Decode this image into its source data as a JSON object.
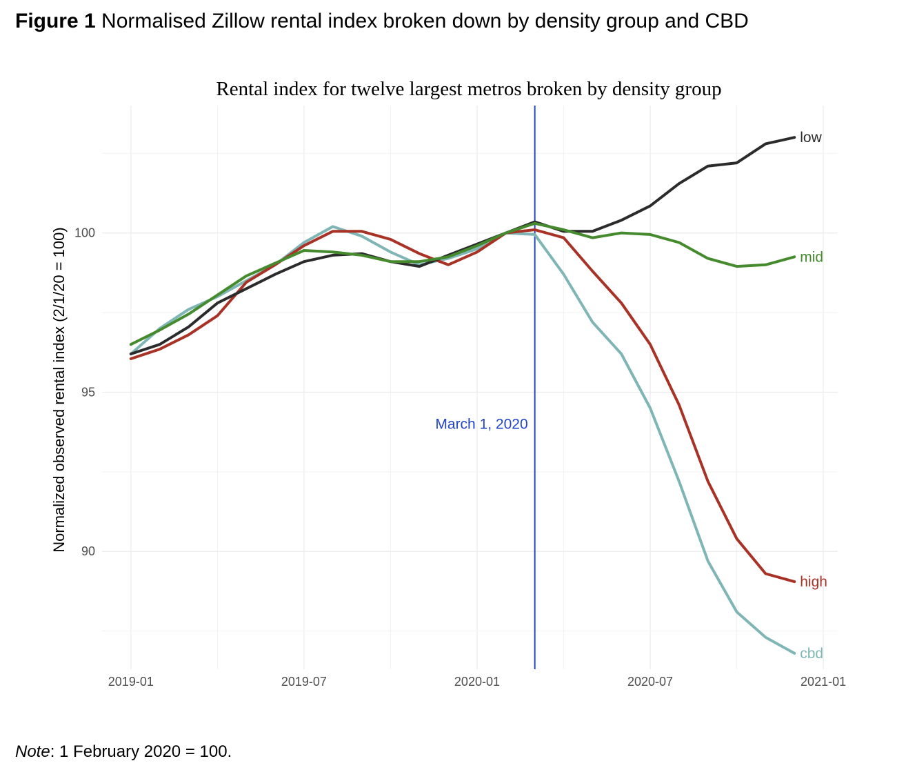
{
  "figure": {
    "title_bold": "Figure 1",
    "title_rest": " Normalised Zillow rental index broken down by density group and CBD",
    "note_label": "Note",
    "note_text": ": 1 February 2020 = 100."
  },
  "chart_data": {
    "type": "line",
    "title": "Rental index for twelve largest metros broken by density group",
    "xlabel": "",
    "ylabel": "Normalized observed rental index (2/1/20 = 100)",
    "x_unit": "months since 2019-01",
    "xlim": [
      -1,
      24.5
    ],
    "ylim": [
      86.3,
      104
    ],
    "x_ticks": [
      {
        "value": 0,
        "label": "2019-01"
      },
      {
        "value": 6,
        "label": "2019-07"
      },
      {
        "value": 12,
        "label": "2020-01"
      },
      {
        "value": 18,
        "label": "2020-07"
      },
      {
        "value": 24,
        "label": "2021-01"
      }
    ],
    "y_ticks": [
      {
        "value": 90,
        "label": "90"
      },
      {
        "value": 95,
        "label": "95"
      },
      {
        "value": 100,
        "label": "100"
      }
    ],
    "grid": true,
    "vline": {
      "x": 14,
      "label": "March 1, 2020",
      "color": "#2244cc"
    },
    "x": [
      0,
      1,
      2,
      3,
      4,
      5,
      6,
      7,
      8,
      9,
      10,
      11,
      12,
      13,
      14,
      15,
      16,
      17,
      18,
      19,
      20,
      21,
      22,
      23
    ],
    "series": [
      {
        "name": "cbd",
        "color": "#7fb5b5",
        "values": [
          96.2,
          97.0,
          97.6,
          98.0,
          98.5,
          99.0,
          99.7,
          100.2,
          99.9,
          99.4,
          99.0,
          99.2,
          99.5,
          100.0,
          99.95,
          98.7,
          97.2,
          96.2,
          94.5,
          92.2,
          89.7,
          88.1,
          87.3,
          86.8
        ]
      },
      {
        "name": "high",
        "color": "#a83226",
        "values": [
          96.05,
          96.35,
          96.8,
          97.4,
          98.45,
          99.0,
          99.6,
          100.05,
          100.05,
          99.8,
          99.35,
          99.0,
          99.4,
          100.0,
          100.1,
          99.85,
          98.8,
          97.8,
          96.5,
          94.6,
          92.2,
          90.4,
          89.3,
          89.05
        ]
      },
      {
        "name": "low",
        "color": "#2b2b2b",
        "values": [
          96.2,
          96.5,
          97.05,
          97.8,
          98.25,
          98.7,
          99.1,
          99.3,
          99.35,
          99.1,
          98.95,
          99.3,
          99.65,
          100.0,
          100.35,
          100.05,
          100.05,
          100.4,
          100.85,
          101.55,
          102.1,
          102.2,
          102.8,
          103.0
        ]
      },
      {
        "name": "mid",
        "color": "#458b2e",
        "values": [
          96.5,
          96.95,
          97.45,
          98.05,
          98.65,
          99.05,
          99.45,
          99.4,
          99.3,
          99.1,
          99.1,
          99.25,
          99.6,
          100.0,
          100.3,
          100.1,
          99.85,
          100.0,
          99.95,
          99.7,
          99.2,
          98.95,
          99.0,
          99.25
        ]
      }
    ]
  }
}
